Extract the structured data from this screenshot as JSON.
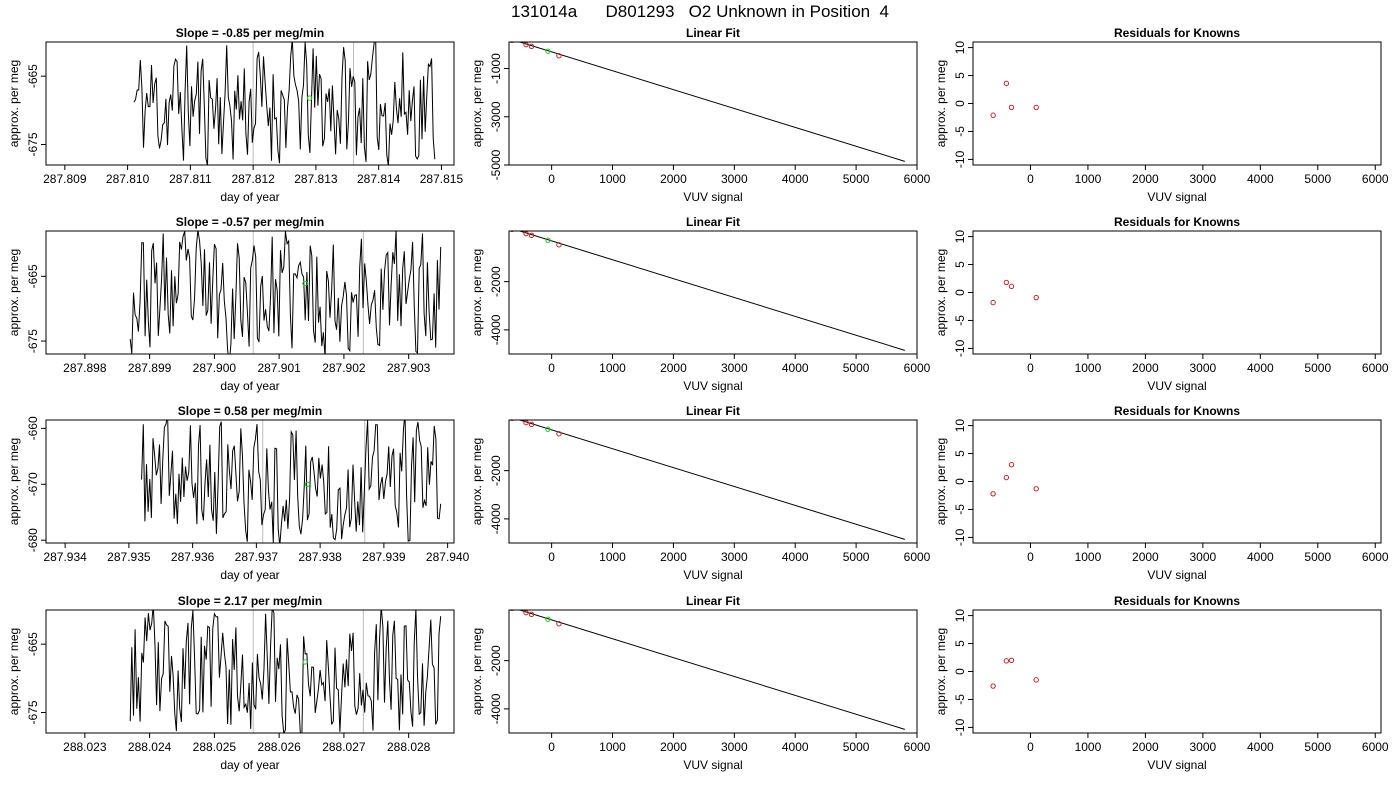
{
  "page_title": "131014a      D801293   O2 Unknown in Position  4",
  "colors": {
    "trace": "#000000",
    "known_point": "#cc2222",
    "unknown_point": "#22cc22",
    "grid_line": "#bbbbbb",
    "fit_line": "#000000"
  },
  "chart_data": [
    {
      "type": "line",
      "panel": "time-series",
      "row": 1,
      "title": "Slope =  -0.85  per meg/min",
      "xlabel": "day of year",
      "ylabel": "approx. per meg",
      "xlim": [
        287.8087,
        287.8152
      ],
      "ylim": [
        -678,
        -660
      ],
      "xticks": [
        "287.809",
        "287.810",
        "287.811",
        "287.812",
        "287.813",
        "287.814",
        "287.815"
      ],
      "yticks": [
        "-665",
        "-675"
      ],
      "trace_start": 287.8101,
      "trace_end": 287.8149,
      "trace_step": 2.55e-05,
      "seed": 11,
      "window_lines": [
        287.812,
        287.8136
      ],
      "unknown_point": {
        "x": 287.8129,
        "y": -668.2
      }
    },
    {
      "type": "scatter",
      "panel": "linear-fit",
      "row": 1,
      "title": "Linear Fit",
      "xlabel": "VUV signal",
      "ylabel": "approx. per meg",
      "xlim": [
        -700,
        6000
      ],
      "ylim": [
        -5000,
        100
      ],
      "xticks": [
        "0",
        "1000",
        "2000",
        "3000",
        "4000",
        "5000",
        "6000"
      ],
      "yticks": [
        "-1000",
        "-3000",
        "-5000"
      ],
      "fit_line": [
        [
          -650,
          200
        ],
        [
          5800,
          -4850
        ]
      ],
      "known_points": [
        [
          -650,
          170
        ],
        [
          -420,
          -10
        ],
        [
          -330,
          -80
        ],
        [
          120,
          -470
        ]
      ],
      "unknown_point": [
        -60,
        -280
      ]
    },
    {
      "type": "scatter",
      "panel": "residuals",
      "row": 1,
      "title": "Residuals for Knowns",
      "xlabel": "VUV signal",
      "ylabel": "approx. per meg",
      "xlim": [
        -1000,
        6100
      ],
      "ylim": [
        -11,
        11
      ],
      "xticks": [
        "0",
        "1000",
        "2000",
        "3000",
        "4000",
        "5000",
        "6000"
      ],
      "yticks": [
        "10",
        "5",
        "0",
        "-5",
        "-10"
      ],
      "known_points": [
        [
          -650,
          -2.1
        ],
        [
          -420,
          3.6
        ],
        [
          -330,
          -0.7
        ],
        [
          100,
          -0.7
        ]
      ]
    },
    {
      "type": "line",
      "panel": "time-series",
      "row": 2,
      "title": "Slope =  -0.57  per meg/min",
      "xlabel": "day of year",
      "ylabel": "approx. per meg",
      "xlim": [
        287.8974,
        287.9037
      ],
      "ylim": [
        -677,
        -658
      ],
      "xticks": [
        "287.898",
        "287.899",
        "287.900",
        "287.901",
        "287.902",
        "287.903"
      ],
      "yticks": [
        "-665",
        "-675"
      ],
      "trace_start": 287.8987,
      "trace_end": 287.9035,
      "trace_step": 2.55e-05,
      "seed": 23,
      "window_lines": [
        287.9006,
        287.9023
      ],
      "unknown_point": {
        "x": 287.9014,
        "y": -666.1
      }
    },
    {
      "type": "scatter",
      "panel": "linear-fit",
      "row": 2,
      "title": "Linear Fit",
      "xlabel": "VUV signal",
      "ylabel": "approx. per meg",
      "xlim": [
        -700,
        6000
      ],
      "ylim": [
        -5000,
        100
      ],
      "xticks": [
        "0",
        "1000",
        "2000",
        "3000",
        "4000",
        "5000",
        "6000"
      ],
      "yticks": [
        "-2000",
        "-4000"
      ],
      "fit_line": [
        [
          -650,
          200
        ],
        [
          5800,
          -4850
        ]
      ],
      "known_points": [
        [
          -650,
          170
        ],
        [
          -420,
          -10
        ],
        [
          -330,
          -80
        ],
        [
          120,
          -470
        ]
      ],
      "unknown_point": [
        -60,
        -280
      ]
    },
    {
      "type": "scatter",
      "panel": "residuals",
      "row": 2,
      "title": "Residuals for Knowns",
      "xlabel": "VUV signal",
      "ylabel": "approx. per meg",
      "xlim": [
        -1000,
        6100
      ],
      "ylim": [
        -11,
        11
      ],
      "xticks": [
        "0",
        "1000",
        "2000",
        "3000",
        "4000",
        "5000",
        "6000"
      ],
      "yticks": [
        "10",
        "5",
        "0",
        "-5",
        "-10"
      ],
      "known_points": [
        [
          -650,
          -1.8
        ],
        [
          -420,
          1.8
        ],
        [
          -330,
          1.1
        ],
        [
          100,
          -0.9
        ]
      ]
    },
    {
      "type": "line",
      "panel": "time-series",
      "row": 3,
      "title": "Slope =  0.58  per meg/min",
      "xlabel": "day of year",
      "ylabel": "approx. per meg",
      "xlim": [
        287.9337,
        287.9401
      ],
      "ylim": [
        -680.5,
        -658.5
      ],
      "xticks": [
        "287.934",
        "287.935",
        "287.936",
        "287.937",
        "287.938",
        "287.939",
        "287.940"
      ],
      "yticks": [
        "-660",
        "-670",
        "-680"
      ],
      "trace_start": 287.9352,
      "trace_end": 287.9399,
      "trace_step": 2.55e-05,
      "seed": 37,
      "window_lines": [
        287.9371,
        287.9387
      ],
      "unknown_point": {
        "x": 287.9378,
        "y": -670.0
      }
    },
    {
      "type": "scatter",
      "panel": "linear-fit",
      "row": 3,
      "title": "Linear Fit",
      "xlabel": "VUV signal",
      "ylabel": "approx. per meg",
      "xlim": [
        -700,
        6000
      ],
      "ylim": [
        -5000,
        100
      ],
      "xticks": [
        "0",
        "1000",
        "2000",
        "3000",
        "4000",
        "5000",
        "6000"
      ],
      "yticks": [
        "-2000",
        "-4000"
      ],
      "fit_line": [
        [
          -650,
          200
        ],
        [
          5800,
          -4850
        ]
      ],
      "known_points": [
        [
          -650,
          170
        ],
        [
          -420,
          -10
        ],
        [
          -330,
          -80
        ],
        [
          120,
          -470
        ]
      ],
      "unknown_point": [
        -60,
        -280
      ]
    },
    {
      "type": "scatter",
      "panel": "residuals",
      "row": 3,
      "title": "Residuals for Knowns",
      "xlabel": "VUV signal",
      "ylabel": "approx. per meg",
      "xlim": [
        -1000,
        6100
      ],
      "ylim": [
        -11,
        11
      ],
      "xticks": [
        "0",
        "1000",
        "2000",
        "3000",
        "4000",
        "5000",
        "6000"
      ],
      "yticks": [
        "10",
        "5",
        "0",
        "-5",
        "-10"
      ],
      "known_points": [
        [
          -650,
          -2.2
        ],
        [
          -420,
          0.7
        ],
        [
          -330,
          3.0
        ],
        [
          100,
          -1.3
        ]
      ]
    },
    {
      "type": "line",
      "panel": "time-series",
      "row": 4,
      "title": "Slope =  2.17  per meg/min",
      "xlabel": "day of year",
      "ylabel": "approx. per meg",
      "xlim": [
        288.0224,
        288.0287
      ],
      "ylim": [
        -678,
        -660
      ],
      "xticks": [
        "288.023",
        "288.024",
        "288.025",
        "288.026",
        "288.027",
        "288.028"
      ],
      "yticks": [
        "-665",
        "-675"
      ],
      "trace_start": 288.0237,
      "trace_end": 288.0285,
      "trace_step": 2.55e-05,
      "seed": 53,
      "window_lines": [
        288.0256,
        288.0273
      ],
      "unknown_point": {
        "x": 288.0264,
        "y": -667.6
      }
    },
    {
      "type": "scatter",
      "panel": "linear-fit",
      "row": 4,
      "title": "Linear Fit",
      "xlabel": "VUV signal",
      "ylabel": "approx. per meg",
      "xlim": [
        -700,
        6000
      ],
      "ylim": [
        -5000,
        100
      ],
      "xticks": [
        "0",
        "1000",
        "2000",
        "3000",
        "4000",
        "5000",
        "6000"
      ],
      "yticks": [
        "-2000",
        "-4000"
      ],
      "fit_line": [
        [
          -650,
          200
        ],
        [
          5800,
          -4850
        ]
      ],
      "known_points": [
        [
          -650,
          170
        ],
        [
          -420,
          -10
        ],
        [
          -330,
          -80
        ],
        [
          120,
          -470
        ]
      ],
      "unknown_point": [
        -60,
        -280
      ]
    },
    {
      "type": "scatter",
      "panel": "residuals",
      "row": 4,
      "title": "Residuals for Knowns",
      "xlabel": "VUV signal",
      "ylabel": "approx. per meg",
      "xlim": [
        -1000,
        6100
      ],
      "ylim": [
        -11,
        11
      ],
      "xticks": [
        "0",
        "1000",
        "2000",
        "3000",
        "4000",
        "5000",
        "6000"
      ],
      "yticks": [
        "10",
        "5",
        "0",
        "-5",
        "-10"
      ],
      "known_points": [
        [
          -650,
          -2.6
        ],
        [
          -420,
          1.9
        ],
        [
          -330,
          2.0
        ],
        [
          100,
          -1.5
        ]
      ]
    }
  ]
}
